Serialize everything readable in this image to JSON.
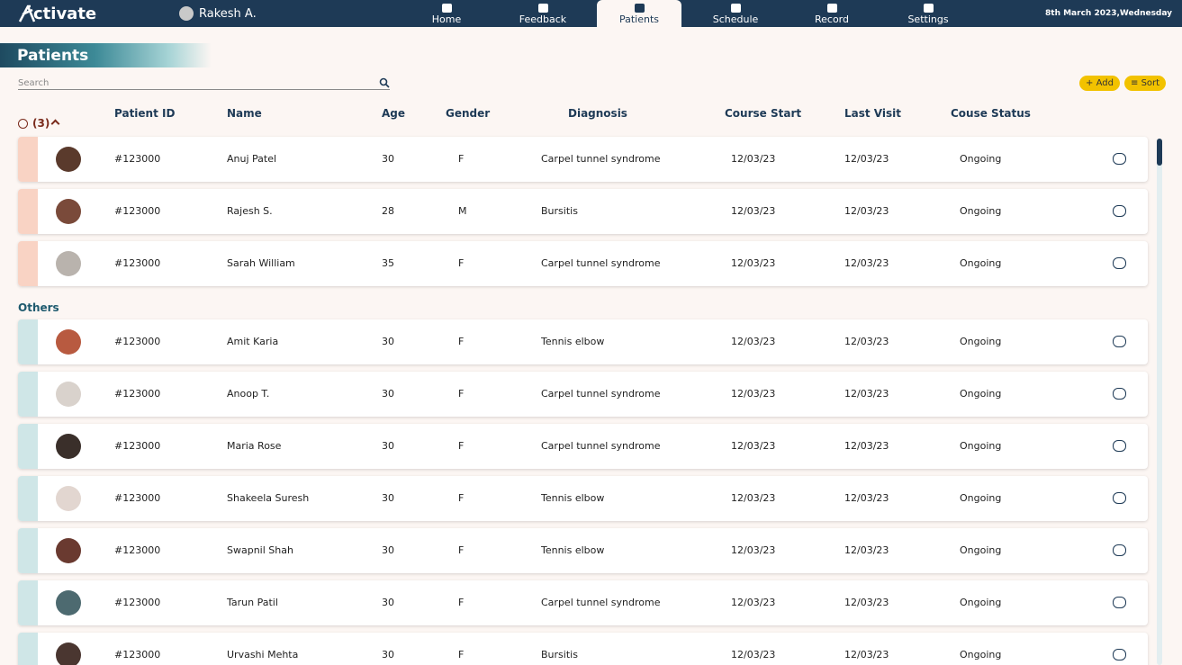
{
  "nav": {
    "logo": "ctivate",
    "user": "Rakesh A.",
    "items": [
      "Home",
      "Feedback",
      "Patients",
      "Schedule",
      "Record",
      "Settings"
    ],
    "active": 2,
    "date": "8th March 2023,Wednesday"
  },
  "page": {
    "title": "Patients",
    "search_placeholder": "Search",
    "add": "Add",
    "sort": "Sort"
  },
  "table": {
    "columns": [
      "Patient ID",
      "Name",
      "Age",
      "Gender",
      "Diagnosis",
      "Course Start",
      "Last Visit",
      "Couse Status"
    ],
    "groups": [
      {
        "label": "(3)",
        "rows": [
          [
            "#123000",
            "Anuj Patel",
            30,
            "F",
            "Carpel tunnel syndrome",
            "12/03/23",
            "12/03/23",
            "Ongoing"
          ],
          [
            "#123000",
            "Rajesh S.",
            28,
            "M",
            "Bursitis",
            "12/03/23",
            "12/03/23",
            "Ongoing"
          ],
          [
            "#123000",
            "Sarah William",
            35,
            "F",
            "Carpel tunnel syndrome",
            "12/03/23",
            "12/03/23",
            "Ongoing"
          ]
        ]
      },
      {
        "label": "Others",
        "rows": [
          [
            "#123000",
            "Amit Karia",
            30,
            "F",
            "Tennis elbow",
            "12/03/23",
            "12/03/23",
            "Ongoing"
          ],
          [
            "#123000",
            "Anoop T.",
            30,
            "F",
            "Carpel tunnel syndrome",
            "12/03/23",
            "12/03/23",
            "Ongoing"
          ],
          [
            "#123000",
            "Maria Rose",
            30,
            "F",
            "Carpel tunnel syndrome",
            "12/03/23",
            "12/03/23",
            "Ongoing"
          ],
          [
            "#123000",
            "Shakeela Suresh",
            30,
            "F",
            "Tennis elbow",
            "12/03/23",
            "12/03/23",
            "Ongoing"
          ],
          [
            "#123000",
            "Swapnil Shah",
            30,
            "F",
            "Tennis elbow",
            "12/03/23",
            "12/03/23",
            "Ongoing"
          ],
          [
            "#123000",
            "Tarun Patil",
            30,
            "F",
            "Carpel tunnel syndrome",
            "12/03/23",
            "12/03/23",
            "Ongoing"
          ],
          [
            "#123000",
            "Urvashi Mehta",
            30,
            "F",
            "Bursitis",
            "12/03/23",
            "12/03/23",
            "Ongoing"
          ]
        ]
      }
    ]
  }
}
